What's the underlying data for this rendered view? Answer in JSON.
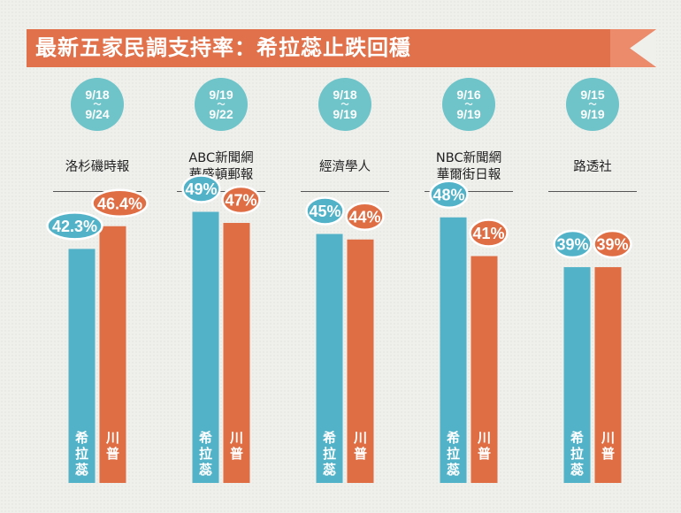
{
  "title": "最新五家民調支持率：希拉蕊止跌回穩",
  "colors": {
    "banner": "#e0714a",
    "clinton": "#52b3c8",
    "trump": "#e06e45",
    "date_circle": "#6ec4c9"
  },
  "chart_data": {
    "type": "bar",
    "title": "最新五家民調支持率：希拉蕊止跌回穩",
    "categories": [
      "洛杉磯時報",
      "ABC新聞網 華盛頓郵報",
      "經濟學人",
      "NBC新聞網 華爾街日報",
      "路透社"
    ],
    "date_ranges": [
      [
        "9/18",
        "～",
        "9/24"
      ],
      [
        "9/19",
        "～",
        "9/22"
      ],
      [
        "9/18",
        "～",
        "9/19"
      ],
      [
        "9/16",
        "～",
        "9/19"
      ],
      [
        "9/15",
        "～",
        "9/19"
      ]
    ],
    "pollsters": [
      [
        "洛杉磯時報"
      ],
      [
        "ABC新聞網",
        "華盛頓郵報"
      ],
      [
        "經濟學人"
      ],
      [
        "NBC新聞網",
        "華爾街日報"
      ],
      [
        "路透社"
      ]
    ],
    "series": [
      {
        "name": "希拉蕊",
        "values": [
          42.3,
          49,
          45,
          48,
          39
        ],
        "labels": [
          "42.3%",
          "49%",
          "45%",
          "48%",
          "39%"
        ],
        "color": "#52b3c8"
      },
      {
        "name": "川普",
        "values": [
          46.4,
          47,
          44,
          41,
          39
        ],
        "labels": [
          "46.4%",
          "47%",
          "44%",
          "41%",
          "39%"
        ],
        "color": "#e06e45"
      }
    ],
    "bar_text": {
      "clinton": [
        "希",
        "拉",
        "蕊"
      ],
      "trump": [
        "川",
        "普"
      ]
    },
    "legend": "none",
    "grid": false
  }
}
